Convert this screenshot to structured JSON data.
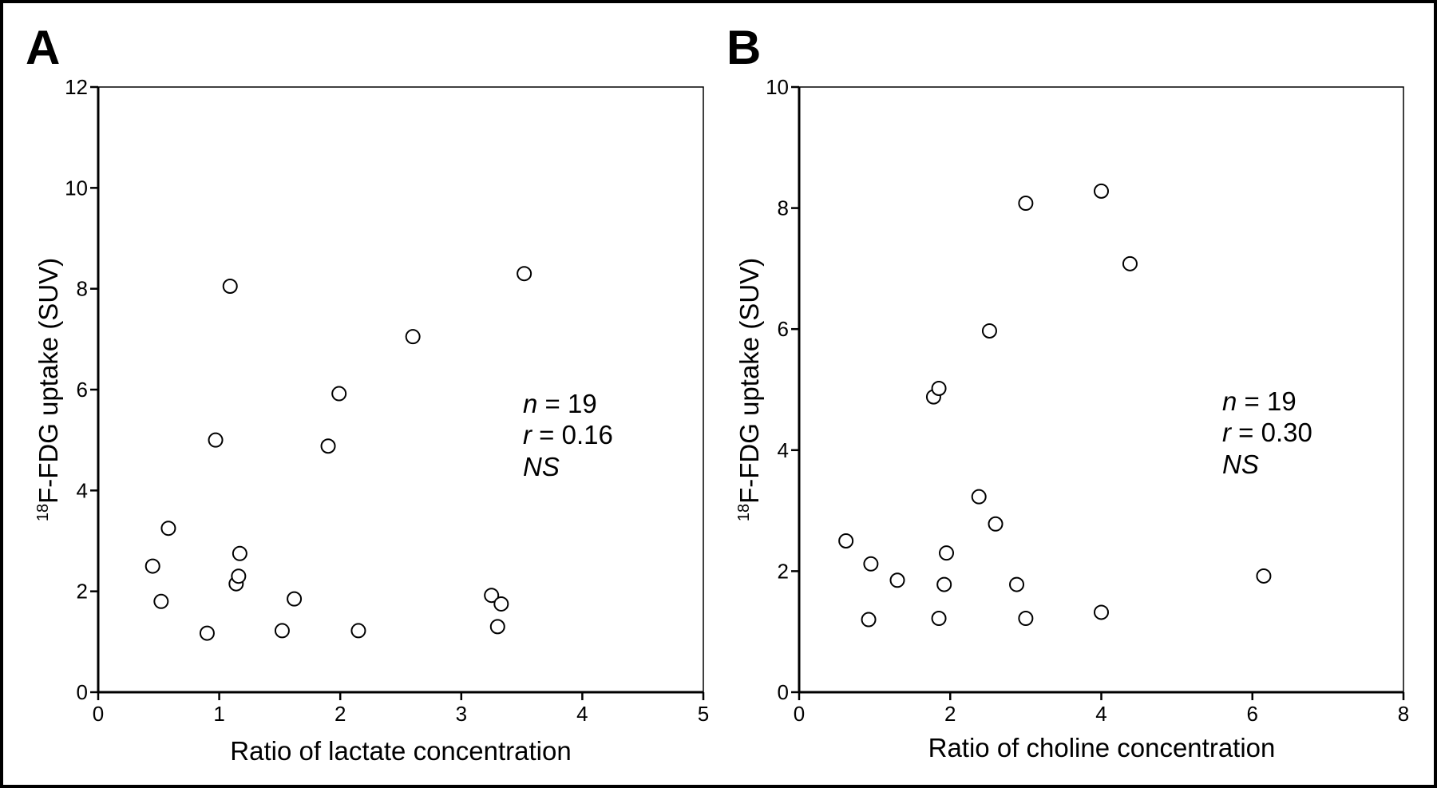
{
  "chart_data": [
    {
      "type": "scatter",
      "panel_label": "A",
      "xlabel": "Ratio of lactate concentration",
      "ylabel_sup": "18",
      "ylabel": "F-FDG uptake (SUV)",
      "xlim": [
        0,
        5
      ],
      "ylim": [
        0,
        12
      ],
      "xticks": [
        0,
        1,
        2,
        3,
        4,
        5
      ],
      "yticks": [
        0,
        2,
        4,
        6,
        8,
        10,
        12
      ],
      "annotation": {
        "n_label": "n",
        "n_value": " = 19",
        "r_label": "r",
        "r_value": " = 0.16",
        "sig": "NS"
      },
      "x": [
        0.45,
        0.52,
        0.58,
        0.9,
        0.97,
        1.09,
        1.14,
        1.16,
        1.17,
        1.52,
        1.62,
        1.9,
        1.99,
        2.15,
        2.6,
        3.25,
        3.3,
        3.33,
        3.52
      ],
      "y": [
        2.5,
        1.8,
        3.25,
        1.17,
        5.0,
        8.05,
        2.15,
        2.3,
        2.75,
        1.22,
        1.85,
        4.88,
        5.92,
        1.22,
        7.05,
        1.92,
        1.3,
        1.75,
        8.3
      ]
    },
    {
      "type": "scatter",
      "panel_label": "B",
      "xlabel": "Ratio of choline concentration",
      "ylabel_sup": "18",
      "ylabel": "F-FDG uptake (SUV)",
      "xlim": [
        0,
        8
      ],
      "ylim": [
        0,
        10
      ],
      "xticks": [
        0,
        2,
        4,
        6,
        8
      ],
      "yticks": [
        0,
        2,
        4,
        6,
        8,
        10
      ],
      "annotation": {
        "n_label": "n",
        "n_value": " = 19",
        "r_label": "r",
        "r_value": " = 0.30",
        "sig": "NS"
      },
      "x": [
        0.62,
        0.92,
        0.95,
        1.3,
        1.78,
        1.85,
        1.85,
        1.92,
        1.95,
        2.38,
        2.52,
        2.6,
        2.88,
        3.0,
        3.0,
        4.0,
        4.0,
        4.38,
        6.15
      ],
      "y": [
        2.5,
        1.2,
        2.12,
        1.85,
        4.88,
        5.02,
        1.22,
        1.78,
        2.3,
        3.23,
        5.97,
        2.78,
        1.78,
        1.22,
        8.08,
        8.28,
        1.32,
        7.08,
        1.92
      ]
    }
  ]
}
